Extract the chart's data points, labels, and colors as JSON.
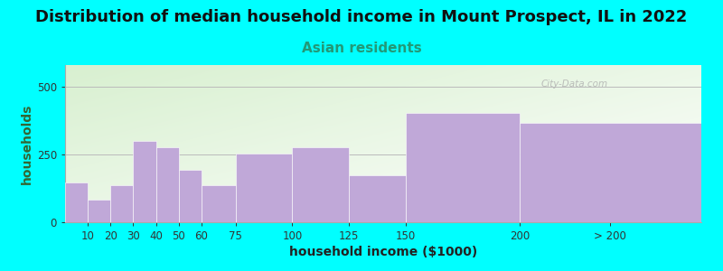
{
  "title": "Distribution of median household income in Mount Prospect, IL in 2022",
  "subtitle": "Asian residents",
  "xlabel": "household income ($1000)",
  "ylabel": "households",
  "bg_color": "#00FFFF",
  "bar_color": "#c0a8d8",
  "categories": [
    "10",
    "20",
    "30",
    "40",
    "50",
    "60",
    "75",
    "100",
    "125",
    "150",
    "200",
    "> 200"
  ],
  "left_edges": [
    0,
    10,
    20,
    30,
    40,
    50,
    60,
    75,
    100,
    125,
    150,
    200
  ],
  "bar_widths": [
    10,
    10,
    10,
    10,
    10,
    10,
    15,
    25,
    25,
    25,
    50,
    80
  ],
  "bar_heights": [
    148,
    82,
    138,
    300,
    278,
    192,
    138,
    255,
    278,
    172,
    405,
    368
  ],
  "tick_positions": [
    10,
    20,
    30,
    40,
    50,
    60,
    75,
    100,
    125,
    150,
    200,
    240
  ],
  "ylim": [
    0,
    580
  ],
  "yticks": [
    0,
    250,
    500
  ],
  "xlim": [
    0,
    280
  ],
  "title_fontsize": 13,
  "subtitle_fontsize": 11,
  "axis_label_fontsize": 10,
  "tick_fontsize": 8.5,
  "watermark_text": "City-Data.com",
  "grad_top_color": "#d8f0d0",
  "grad_bottom_color": "#f8fef8",
  "grad_right_color": "#f4faff"
}
